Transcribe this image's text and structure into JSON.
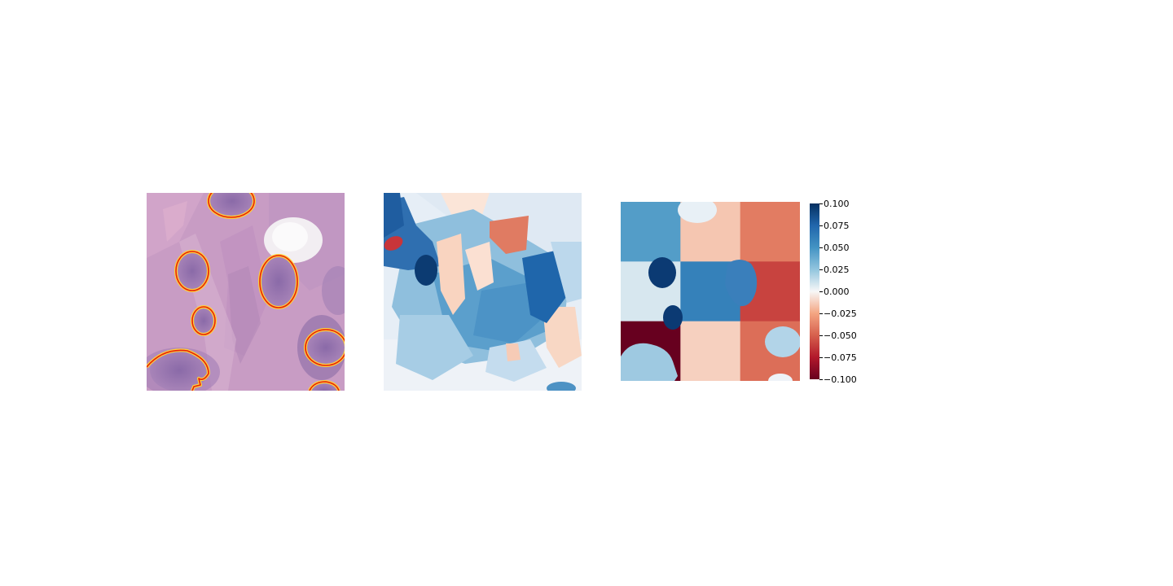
{
  "figure": {
    "panels": [
      {
        "id": "tissue",
        "description_kind": "image",
        "contour_color": "#e8200a",
        "contour_glow": "#ffd23a"
      },
      {
        "id": "attribution",
        "description_kind": "image"
      },
      {
        "id": "grid-map",
        "description_kind": "image"
      }
    ],
    "colorbar": {
      "cmap": "RdBu",
      "range": [
        -0.1,
        0.1
      ],
      "ticks": [
        {
          "value": 0.1,
          "label": "0.100"
        },
        {
          "value": 0.075,
          "label": "0.075"
        },
        {
          "value": 0.05,
          "label": "0.050"
        },
        {
          "value": 0.025,
          "label": "0.025"
        },
        {
          "value": 0.0,
          "label": "0.000"
        },
        {
          "value": -0.025,
          "label": "−0.025"
        },
        {
          "value": -0.05,
          "label": "−0.050"
        },
        {
          "value": -0.075,
          "label": "−0.075"
        },
        {
          "value": -0.1,
          "label": "−0.100"
        }
      ]
    },
    "grid_map": {
      "rows": 3,
      "cols": 3,
      "cell_values": [
        [
          0.045,
          -0.015,
          -0.04
        ],
        [
          0.008,
          0.06,
          -0.06
        ],
        [
          -0.1,
          -0.012,
          -0.045
        ]
      ]
    }
  }
}
